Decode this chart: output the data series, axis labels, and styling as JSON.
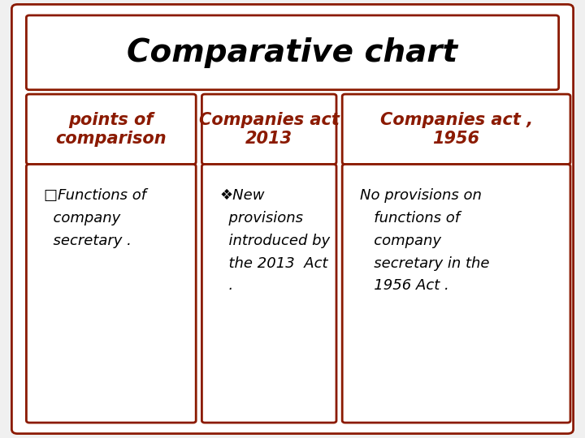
{
  "title": "Comparative chart",
  "title_fontsize": 28,
  "title_color": "#000000",
  "header_color": "#8B1A00",
  "header_fontsize": 15,
  "col1_header": "points of\ncomparison",
  "col2_header": "Companies act\n2013",
  "col3_header": "Companies act ,\n1956",
  "col1_body": "□Functions of\n  company\n  secretary .",
  "col2_body": "❖New\n  provisions\n  introduced by\n  the 2013  Act\n  .",
  "col3_body": "No provisions on\n   functions of\n   company\n   secretary in the\n   1956 Act .",
  "body_fontsize": 13,
  "body_color": "#000000",
  "border_color": "#8B1A00",
  "bg_color": "#FFFFFF",
  "outer_bg": "#F0F0F0",
  "border_lw": 2.0
}
